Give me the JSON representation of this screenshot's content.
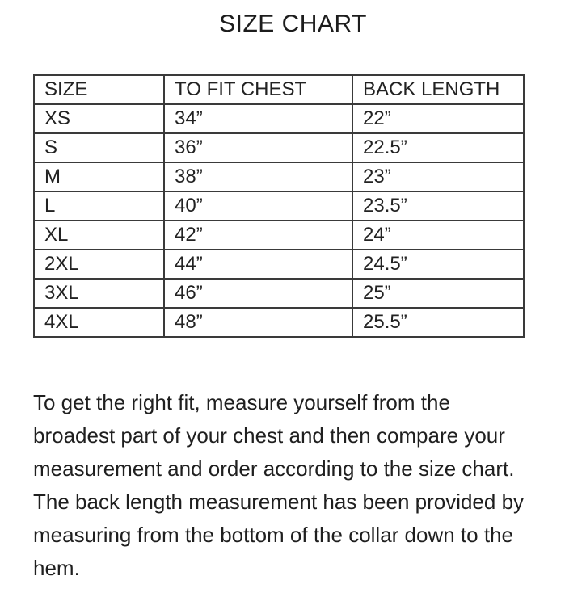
{
  "page": {
    "title": "SIZE CHART",
    "background_color": "#ffffff",
    "text_color": "#1f1f1f",
    "border_color": "#3a3a3a"
  },
  "table": {
    "headers": [
      "SIZE",
      "TO FIT CHEST",
      "BACK LENGTH"
    ],
    "rows": [
      [
        "XS",
        "34”",
        "22”"
      ],
      [
        "S",
        "36”",
        "22.5”"
      ],
      [
        "M",
        "38”",
        "23”"
      ],
      [
        "L",
        "40”",
        "23.5”"
      ],
      [
        "XL",
        "42”",
        "24”"
      ],
      [
        "2XL",
        "44”",
        "24.5”"
      ],
      [
        "3XL",
        "46”",
        "25”"
      ],
      [
        "4XL",
        "48”",
        "25.5”"
      ]
    ]
  },
  "paragraph": {
    "lines": [
      "To get the right fit, measure yourself from the",
      "broadest part of your chest and then compare your",
      "measurement and order according to the size chart.",
      "The back length measurement has been provided by",
      "measuring from the bottom of the collar down to the",
      "hem."
    ]
  }
}
